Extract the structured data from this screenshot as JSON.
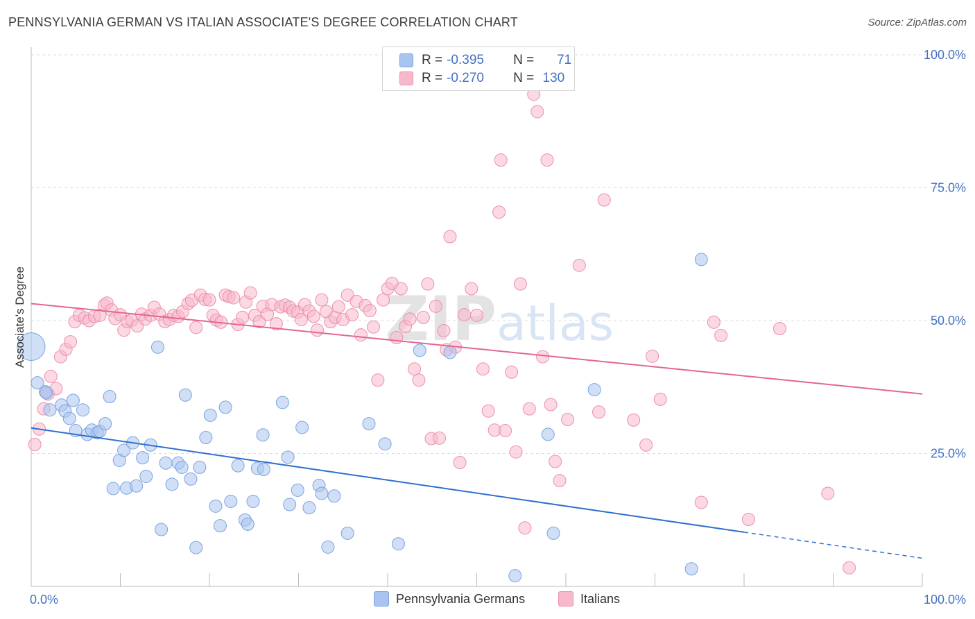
{
  "title": "PENNSYLVANIA GERMAN VS ITALIAN ASSOCIATE'S DEGREE CORRELATION CHART",
  "source": "Source: ZipAtlas.com",
  "watermark": "ZIPatlas",
  "legend": {
    "row1": {
      "r_label": "R =",
      "r_value": "-0.395",
      "n_label": "N =",
      "n_value": "71"
    },
    "row2": {
      "r_label": "R =",
      "r_value": "-0.270",
      "n_label": "N =",
      "n_value": "130"
    }
  },
  "colors": {
    "blue_fill": "#a9c4ee",
    "blue_stroke": "#7aa3e0",
    "blue_line": "#2f6fcf",
    "pink_fill": "#f7b8cb",
    "pink_stroke": "#ec8fac",
    "pink_line": "#e3668f",
    "tick_label": "#4472c4",
    "grid": "#dedede"
  },
  "chart_data": {
    "type": "scatter",
    "title": "PENNSYLVANIA GERMAN VS ITALIAN ASSOCIATE'S DEGREE CORRELATION CHART",
    "xlabel": "",
    "ylabel": "Associate's Degree",
    "xlim": [
      0,
      100
    ],
    "ylim": [
      0,
      100
    ],
    "x_tick_labels": [
      "0.0%",
      "100.0%"
    ],
    "y_ticks": [
      25,
      50,
      75,
      100
    ],
    "y_tick_labels": [
      "25.0%",
      "50.0%",
      "75.0%",
      "100.0%"
    ],
    "grid": true,
    "legend_position": "bottom",
    "series": [
      {
        "name": "Pennsylvania Germans",
        "color": "#a9c4ee",
        "trend": {
          "x": [
            0,
            80,
            100
          ],
          "y": [
            29.8,
            10.2,
            5.3
          ],
          "dashed_from": 80
        },
        "points": [
          [
            0.0,
            45.1
          ],
          [
            0.7,
            38.3
          ],
          [
            1.6,
            36.6
          ],
          [
            1.7,
            36.4
          ],
          [
            2.1,
            33.2
          ],
          [
            3.4,
            34.1
          ],
          [
            3.8,
            33.0
          ],
          [
            4.3,
            31.6
          ],
          [
            5.0,
            29.3
          ],
          [
            4.7,
            35.0
          ],
          [
            5.8,
            33.2
          ],
          [
            6.3,
            28.6
          ],
          [
            6.8,
            29.4
          ],
          [
            7.4,
            28.9
          ],
          [
            7.7,
            29.2
          ],
          [
            8.3,
            30.6
          ],
          [
            8.8,
            35.7
          ],
          [
            9.2,
            18.4
          ],
          [
            9.9,
            23.7
          ],
          [
            10.4,
            25.6
          ],
          [
            10.7,
            18.5
          ],
          [
            11.4,
            27.0
          ],
          [
            11.8,
            18.9
          ],
          [
            12.5,
            24.2
          ],
          [
            12.9,
            20.7
          ],
          [
            13.4,
            26.6
          ],
          [
            14.2,
            45.0
          ],
          [
            14.6,
            10.7
          ],
          [
            15.1,
            23.2
          ],
          [
            15.8,
            19.2
          ],
          [
            16.5,
            23.2
          ],
          [
            16.9,
            22.4
          ],
          [
            17.3,
            36.0
          ],
          [
            17.9,
            20.2
          ],
          [
            18.5,
            7.3
          ],
          [
            18.9,
            22.4
          ],
          [
            19.6,
            28.0
          ],
          [
            20.1,
            32.2
          ],
          [
            20.7,
            15.1
          ],
          [
            21.2,
            11.4
          ],
          [
            21.8,
            33.7
          ],
          [
            22.4,
            16.0
          ],
          [
            23.2,
            22.7
          ],
          [
            24.0,
            12.5
          ],
          [
            24.3,
            11.7
          ],
          [
            24.9,
            16.0
          ],
          [
            25.4,
            22.2
          ],
          [
            26.1,
            22.0
          ],
          [
            26.0,
            28.5
          ],
          [
            28.2,
            34.6
          ],
          [
            28.8,
            24.3
          ],
          [
            29.0,
            15.4
          ],
          [
            29.9,
            18.1
          ],
          [
            30.4,
            29.9
          ],
          [
            31.2,
            14.8
          ],
          [
            32.3,
            19.0
          ],
          [
            32.6,
            17.5
          ],
          [
            33.3,
            7.4
          ],
          [
            34.0,
            17.0
          ],
          [
            35.5,
            10.0
          ],
          [
            37.9,
            30.6
          ],
          [
            39.7,
            26.8
          ],
          [
            41.2,
            8.0
          ],
          [
            43.6,
            44.4
          ],
          [
            47.0,
            44.0
          ],
          [
            54.3,
            2.0
          ],
          [
            58.0,
            28.6
          ],
          [
            58.6,
            10.0
          ],
          [
            63.2,
            37.0
          ],
          [
            74.1,
            3.3
          ],
          [
            75.2,
            61.5
          ]
        ],
        "radii": {
          "0": 20
        }
      },
      {
        "name": "Italians",
        "color": "#f7b8cb",
        "trend": {
          "x": [
            0,
            100
          ],
          "y": [
            53.2,
            36.2
          ]
        },
        "points": [
          [
            0.4,
            26.7
          ],
          [
            0.9,
            29.6
          ],
          [
            1.4,
            33.4
          ],
          [
            1.9,
            36.2
          ],
          [
            2.2,
            39.5
          ],
          [
            2.8,
            37.2
          ],
          [
            3.3,
            43.2
          ],
          [
            3.9,
            44.6
          ],
          [
            4.4,
            46.0
          ],
          [
            4.9,
            49.8
          ],
          [
            5.4,
            51.0
          ],
          [
            6.0,
            50.5
          ],
          [
            6.5,
            50.0
          ],
          [
            7.1,
            50.8
          ],
          [
            7.7,
            51.0
          ],
          [
            8.2,
            52.9
          ],
          [
            8.5,
            53.3
          ],
          [
            9.0,
            52.0
          ],
          [
            9.4,
            50.4
          ],
          [
            10.0,
            51.1
          ],
          [
            10.4,
            48.2
          ],
          [
            10.8,
            49.8
          ],
          [
            11.3,
            50.1
          ],
          [
            11.9,
            49.0
          ],
          [
            12.4,
            51.2
          ],
          [
            12.8,
            50.3
          ],
          [
            13.4,
            51.0
          ],
          [
            13.8,
            52.5
          ],
          [
            14.4,
            51.2
          ],
          [
            15.0,
            49.8
          ],
          [
            15.5,
            50.2
          ],
          [
            16.0,
            51.0
          ],
          [
            16.5,
            50.8
          ],
          [
            17.0,
            51.7
          ],
          [
            17.6,
            53.2
          ],
          [
            18.0,
            53.8
          ],
          [
            18.5,
            48.7
          ],
          [
            19.0,
            54.8
          ],
          [
            19.5,
            54.0
          ],
          [
            20.0,
            53.9
          ],
          [
            20.4,
            51.0
          ],
          [
            20.8,
            50.1
          ],
          [
            21.3,
            49.7
          ],
          [
            21.8,
            54.8
          ],
          [
            22.2,
            54.5
          ],
          [
            22.7,
            54.3
          ],
          [
            23.2,
            49.3
          ],
          [
            23.7,
            50.6
          ],
          [
            24.1,
            53.5
          ],
          [
            24.6,
            55.2
          ],
          [
            25.1,
            51.0
          ],
          [
            25.6,
            49.8
          ],
          [
            26.0,
            52.7
          ],
          [
            26.5,
            51.2
          ],
          [
            27.0,
            53.0
          ],
          [
            27.5,
            49.4
          ],
          [
            28.0,
            52.6
          ],
          [
            28.5,
            52.9
          ],
          [
            29.0,
            52.5
          ],
          [
            29.4,
            51.8
          ],
          [
            29.9,
            51.6
          ],
          [
            30.3,
            50.2
          ],
          [
            30.7,
            53.0
          ],
          [
            31.2,
            51.8
          ],
          [
            31.7,
            50.8
          ],
          [
            32.1,
            48.2
          ],
          [
            32.6,
            53.9
          ],
          [
            33.1,
            51.7
          ],
          [
            33.6,
            49.8
          ],
          [
            34.1,
            50.6
          ],
          [
            34.5,
            52.6
          ],
          [
            35.0,
            50.2
          ],
          [
            35.5,
            54.8
          ],
          [
            36.0,
            51.1
          ],
          [
            36.5,
            53.6
          ],
          [
            37.0,
            47.3
          ],
          [
            37.5,
            52.8
          ],
          [
            38.0,
            51.9
          ],
          [
            38.4,
            48.8
          ],
          [
            38.9,
            38.8
          ],
          [
            39.5,
            53.9
          ],
          [
            40.0,
            56.0
          ],
          [
            40.5,
            57.0
          ],
          [
            41.0,
            46.8
          ],
          [
            41.5,
            56.0
          ],
          [
            42.0,
            48.9
          ],
          [
            42.5,
            50.3
          ],
          [
            43.0,
            40.9
          ],
          [
            43.5,
            38.8
          ],
          [
            44.0,
            50.6
          ],
          [
            44.5,
            56.9
          ],
          [
            44.9,
            27.8
          ],
          [
            45.4,
            52.7
          ],
          [
            45.8,
            27.9
          ],
          [
            46.3,
            48.1
          ],
          [
            46.6,
            44.5
          ],
          [
            47.0,
            65.8
          ],
          [
            47.6,
            45.0
          ],
          [
            48.1,
            23.3
          ],
          [
            48.6,
            51.1
          ],
          [
            49.4,
            56.0
          ],
          [
            50.0,
            51.0
          ],
          [
            50.7,
            40.9
          ],
          [
            51.3,
            33.0
          ],
          [
            52.0,
            29.4
          ],
          [
            52.5,
            70.4
          ],
          [
            52.7,
            80.2
          ],
          [
            53.2,
            29.3
          ],
          [
            53.9,
            40.3
          ],
          [
            54.4,
            25.3
          ],
          [
            54.9,
            56.9
          ],
          [
            55.4,
            11.0
          ],
          [
            55.9,
            33.4
          ],
          [
            56.4,
            92.6
          ],
          [
            56.8,
            89.3
          ],
          [
            57.4,
            43.2
          ],
          [
            57.9,
            80.2
          ],
          [
            58.3,
            34.2
          ],
          [
            58.8,
            23.5
          ],
          [
            59.3,
            19.9
          ],
          [
            60.2,
            31.4
          ],
          [
            61.5,
            60.4
          ],
          [
            63.7,
            32.8
          ],
          [
            64.3,
            72.7
          ],
          [
            67.6,
            31.3
          ],
          [
            69.0,
            26.6
          ],
          [
            69.7,
            43.3
          ],
          [
            70.6,
            35.2
          ],
          [
            75.2,
            15.8
          ],
          [
            76.6,
            49.7
          ],
          [
            77.4,
            47.2
          ],
          [
            80.5,
            12.6
          ],
          [
            84.0,
            48.5
          ],
          [
            89.4,
            17.5
          ],
          [
            91.8,
            3.5
          ]
        ]
      }
    ]
  }
}
